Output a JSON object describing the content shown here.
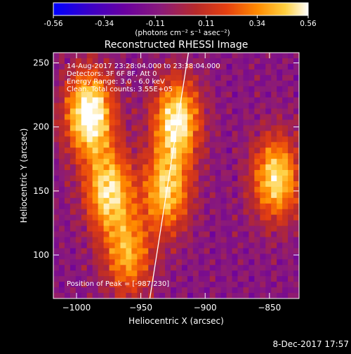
{
  "colorbar": {
    "ticks": [
      "-0.56",
      "-0.34",
      "-0.11",
      "0.11",
      "0.34",
      "0.56"
    ],
    "unit_label": "(photons cm⁻² s⁻¹ asec⁻²)",
    "stops": [
      "#0000ff",
      "#3a00c8",
      "#6a00a0",
      "#8a1a7a",
      "#b82a2a",
      "#e64010",
      "#ff8a00",
      "#ffd040",
      "#ffffff"
    ]
  },
  "chart_data": {
    "type": "heatmap",
    "title": "Reconstructed RHESSI Image",
    "xlabel": "Heliocentric X (arcsec)",
    "ylabel": "Heliocentric Y (arcsec)",
    "xlim": [
      -1018,
      -827
    ],
    "ylim": [
      66,
      258
    ],
    "xticks": [
      -1000,
      -950,
      -900,
      -850
    ],
    "xtick_labels": [
      "−1000",
      "−950",
      "−900",
      "−850"
    ],
    "yticks": [
      100,
      150,
      200,
      250
    ],
    "ytick_labels": [
      "100",
      "150",
      "200",
      "250"
    ],
    "value_range": [
      -0.56,
      0.56
    ],
    "limb_line": [
      [
        -943,
        66
      ],
      [
        -913,
        258
      ]
    ],
    "bright_regions": [
      {
        "x": -990,
        "y": 210,
        "level": 0.56
      },
      {
        "x": -975,
        "y": 150,
        "level": 0.4
      },
      {
        "x": -922,
        "y": 205,
        "level": 0.45
      },
      {
        "x": -930,
        "y": 150,
        "level": 0.34
      },
      {
        "x": -845,
        "y": 160,
        "level": 0.4
      },
      {
        "x": -960,
        "y": 100,
        "level": 0.25
      }
    ],
    "annotations": [
      "14-Aug-2017 23:28:04.000 to 23:38:04.000",
      "Detectors: 3F 6F 8F, Att 0",
      "Energy Range: 3.0 - 6.0 keV",
      "Clean.  Total counts: 3.55E+05"
    ],
    "peak_label": "Position of Peak = [-987,230]"
  },
  "footer": {
    "date": "8-Dec-2017 17:57"
  }
}
